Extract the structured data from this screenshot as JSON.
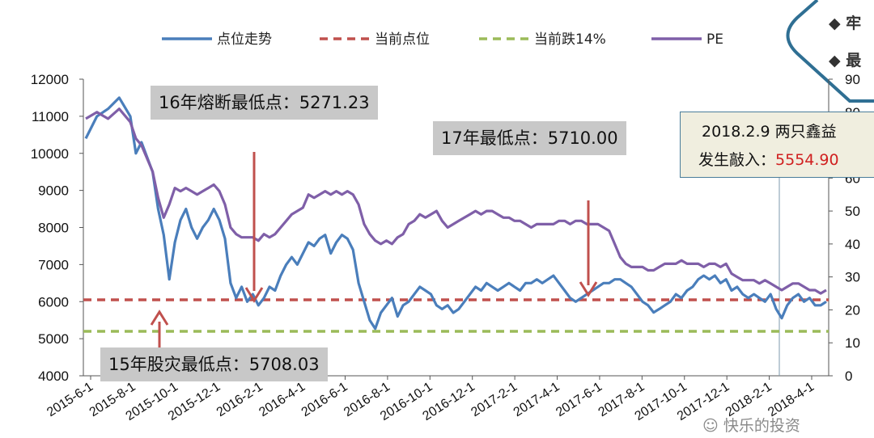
{
  "chart_data": {
    "type": "line",
    "x_ticks": [
      "2015-6-1",
      "2015-8-1",
      "2015-10-1",
      "2015-12-1",
      "2016-2-1",
      "2016-4-1",
      "2016-6-1",
      "2016-8-1",
      "2016-10-1",
      "2016-12-1",
      "2017-2-1",
      "2017-4-1",
      "2017-6-1",
      "2017-8-1",
      "2017-10-1",
      "2017-12-1",
      "2018-2-1",
      "2018-4-1"
    ],
    "y_left": {
      "ticks": [
        4000,
        5000,
        6000,
        7000,
        8000,
        9000,
        10000,
        11000,
        12000
      ],
      "range": [
        4000,
        12000
      ]
    },
    "y_right": {
      "ticks": [
        0,
        10,
        20,
        30,
        40,
        50,
        60,
        70,
        80,
        90
      ],
      "range": [
        0,
        90
      ]
    },
    "series": [
      {
        "name": "点位走势",
        "axis": "left",
        "color": "#4a7ebb",
        "points": [
          [
            0,
            10400
          ],
          [
            2,
            11000
          ],
          [
            4,
            11200
          ],
          [
            6,
            11500
          ],
          [
            8,
            11000
          ],
          [
            9,
            10000
          ],
          [
            10,
            10300
          ],
          [
            12,
            9500
          ],
          [
            13,
            8500
          ],
          [
            14,
            7800
          ],
          [
            15,
            6600
          ],
          [
            16,
            7600
          ],
          [
            17,
            8200
          ],
          [
            18,
            8500
          ],
          [
            19,
            8000
          ],
          [
            20,
            7700
          ],
          [
            21,
            8000
          ],
          [
            22,
            8200
          ],
          [
            23,
            8500
          ],
          [
            24,
            8200
          ],
          [
            25,
            7700
          ],
          [
            26,
            6500
          ],
          [
            27,
            6100
          ],
          [
            28,
            6400
          ],
          [
            29,
            6000
          ],
          [
            30,
            6200
          ],
          [
            31,
            5900
          ],
          [
            32,
            6100
          ],
          [
            33,
            6400
          ],
          [
            34,
            6300
          ],
          [
            35,
            6700
          ],
          [
            36,
            7000
          ],
          [
            37,
            7200
          ],
          [
            38,
            7000
          ],
          [
            39,
            7300
          ],
          [
            40,
            7600
          ],
          [
            41,
            7500
          ],
          [
            42,
            7700
          ],
          [
            43,
            7800
          ],
          [
            44,
            7300
          ],
          [
            45,
            7600
          ],
          [
            46,
            7800
          ],
          [
            47,
            7700
          ],
          [
            48,
            7400
          ],
          [
            49,
            6500
          ],
          [
            50,
            6000
          ],
          [
            51,
            5500
          ],
          [
            52,
            5271
          ],
          [
            53,
            5700
          ],
          [
            54,
            5900
          ],
          [
            55,
            6100
          ],
          [
            56,
            5600
          ],
          [
            57,
            5900
          ],
          [
            58,
            6000
          ],
          [
            59,
            6200
          ],
          [
            60,
            6400
          ],
          [
            61,
            6300
          ],
          [
            62,
            6200
          ],
          [
            63,
            5900
          ],
          [
            64,
            5800
          ],
          [
            65,
            5900
          ],
          [
            66,
            5700
          ],
          [
            67,
            5800
          ],
          [
            68,
            6000
          ],
          [
            69,
            6200
          ],
          [
            70,
            6400
          ],
          [
            71,
            6300
          ],
          [
            72,
            6500
          ],
          [
            73,
            6400
          ],
          [
            74,
            6300
          ],
          [
            75,
            6400
          ],
          [
            76,
            6500
          ],
          [
            77,
            6400
          ],
          [
            78,
            6300
          ],
          [
            79,
            6500
          ],
          [
            80,
            6500
          ],
          [
            81,
            6600
          ],
          [
            82,
            6500
          ],
          [
            83,
            6600
          ],
          [
            84,
            6700
          ],
          [
            85,
            6500
          ],
          [
            86,
            6300
          ],
          [
            87,
            6100
          ],
          [
            88,
            6000
          ],
          [
            89,
            6100
          ],
          [
            90,
            6200
          ],
          [
            91,
            6300
          ],
          [
            92,
            6400
          ],
          [
            93,
            6500
          ],
          [
            94,
            6500
          ],
          [
            95,
            6600
          ],
          [
            96,
            6600
          ],
          [
            97,
            6500
          ],
          [
            98,
            6400
          ],
          [
            99,
            6200
          ],
          [
            100,
            6000
          ],
          [
            101,
            5900
          ],
          [
            102,
            5710
          ],
          [
            103,
            5800
          ],
          [
            104,
            5900
          ],
          [
            105,
            6000
          ],
          [
            106,
            6200
          ],
          [
            107,
            6100
          ],
          [
            108,
            6300
          ],
          [
            109,
            6400
          ],
          [
            110,
            6600
          ],
          [
            111,
            6700
          ],
          [
            112,
            6600
          ],
          [
            113,
            6700
          ],
          [
            114,
            6500
          ],
          [
            115,
            6600
          ],
          [
            116,
            6300
          ],
          [
            117,
            6400
          ],
          [
            118,
            6200
          ],
          [
            119,
            6100
          ],
          [
            120,
            6200
          ],
          [
            121,
            6100
          ],
          [
            122,
            6000
          ],
          [
            123,
            6200
          ],
          [
            124,
            5800
          ],
          [
            125,
            5555
          ],
          [
            126,
            5900
          ],
          [
            127,
            6100
          ],
          [
            128,
            6200
          ],
          [
            129,
            6000
          ],
          [
            130,
            6100
          ],
          [
            131,
            5900
          ],
          [
            132,
            5900
          ],
          [
            133,
            6000
          ]
        ]
      },
      {
        "name": "当前点位",
        "axis": "left",
        "color": "#c0504d",
        "dashed": true,
        "value": 6050
      },
      {
        "name": "当前跌14%",
        "axis": "left",
        "color": "#9bbb59",
        "dashed": true,
        "value": 5200
      },
      {
        "name": "PE",
        "axis": "right",
        "color": "#7f5fa8",
        "points": [
          [
            0,
            78
          ],
          [
            2,
            80
          ],
          [
            4,
            78
          ],
          [
            6,
            81
          ],
          [
            8,
            77
          ],
          [
            9,
            72
          ],
          [
            10,
            70
          ],
          [
            12,
            62
          ],
          [
            13,
            54
          ],
          [
            14,
            48
          ],
          [
            15,
            52
          ],
          [
            16,
            57
          ],
          [
            17,
            56
          ],
          [
            18,
            57
          ],
          [
            19,
            56
          ],
          [
            20,
            55
          ],
          [
            21,
            56
          ],
          [
            22,
            57
          ],
          [
            23,
            58
          ],
          [
            24,
            56
          ],
          [
            25,
            52
          ],
          [
            26,
            45
          ],
          [
            27,
            43
          ],
          [
            28,
            42
          ],
          [
            29,
            42
          ],
          [
            30,
            42
          ],
          [
            31,
            41
          ],
          [
            32,
            43
          ],
          [
            33,
            42
          ],
          [
            34,
            43
          ],
          [
            35,
            45
          ],
          [
            36,
            47
          ],
          [
            37,
            49
          ],
          [
            38,
            50
          ],
          [
            39,
            51
          ],
          [
            40,
            55
          ],
          [
            41,
            54
          ],
          [
            42,
            55
          ],
          [
            43,
            56
          ],
          [
            44,
            55
          ],
          [
            45,
            56
          ],
          [
            46,
            55
          ],
          [
            47,
            56
          ],
          [
            48,
            55
          ],
          [
            49,
            52
          ],
          [
            50,
            46
          ],
          [
            51,
            43
          ],
          [
            52,
            41
          ],
          [
            53,
            40
          ],
          [
            54,
            41
          ],
          [
            55,
            40
          ],
          [
            56,
            42
          ],
          [
            57,
            43
          ],
          [
            58,
            46
          ],
          [
            59,
            47
          ],
          [
            60,
            49
          ],
          [
            61,
            48
          ],
          [
            62,
            49
          ],
          [
            63,
            50
          ],
          [
            64,
            47
          ],
          [
            65,
            45
          ],
          [
            66,
            46
          ],
          [
            67,
            47
          ],
          [
            68,
            48
          ],
          [
            69,
            49
          ],
          [
            70,
            50
          ],
          [
            71,
            49
          ],
          [
            72,
            50
          ],
          [
            73,
            50
          ],
          [
            74,
            49
          ],
          [
            75,
            48
          ],
          [
            76,
            48
          ],
          [
            77,
            47
          ],
          [
            78,
            47
          ],
          [
            79,
            46
          ],
          [
            80,
            45
          ],
          [
            81,
            46
          ],
          [
            82,
            46
          ],
          [
            83,
            46
          ],
          [
            84,
            46
          ],
          [
            85,
            47
          ],
          [
            86,
            47
          ],
          [
            87,
            46
          ],
          [
            88,
            47
          ],
          [
            89,
            47
          ],
          [
            90,
            46
          ],
          [
            91,
            46
          ],
          [
            92,
            46
          ],
          [
            93,
            45
          ],
          [
            94,
            44
          ],
          [
            95,
            40
          ],
          [
            96,
            36
          ],
          [
            97,
            34
          ],
          [
            98,
            33
          ],
          [
            99,
            33
          ],
          [
            100,
            33
          ],
          [
            101,
            32
          ],
          [
            102,
            32
          ],
          [
            103,
            33
          ],
          [
            104,
            34
          ],
          [
            105,
            34
          ],
          [
            106,
            34
          ],
          [
            107,
            35
          ],
          [
            108,
            34
          ],
          [
            109,
            34
          ],
          [
            110,
            34
          ],
          [
            111,
            33
          ],
          [
            112,
            34
          ],
          [
            113,
            34
          ],
          [
            114,
            33
          ],
          [
            115,
            34
          ],
          [
            116,
            31
          ],
          [
            117,
            30
          ],
          [
            118,
            29
          ],
          [
            119,
            29
          ],
          [
            120,
            29
          ],
          [
            121,
            28
          ],
          [
            122,
            29
          ],
          [
            123,
            28
          ],
          [
            124,
            27
          ],
          [
            125,
            26
          ],
          [
            126,
            27
          ],
          [
            127,
            28
          ],
          [
            128,
            28
          ],
          [
            129,
            27
          ],
          [
            130,
            26
          ],
          [
            131,
            26
          ],
          [
            132,
            25
          ],
          [
            133,
            26
          ]
        ]
      }
    ],
    "annotations": [
      {
        "text": "16年熔断最低点：5271.23"
      },
      {
        "text": "17年最低点：5710.00"
      },
      {
        "text": "15年股灾最低点：5708.03"
      }
    ],
    "legend_placement": "top",
    "grid": false
  },
  "infobox": {
    "line1": "2018.2.9  两只鑫益",
    "line2_prefix": "发生敲入：",
    "line2_value": "5554.90"
  },
  "bubble": {
    "item1": "◆  牢",
    "item2": "◆  最"
  },
  "watermark": "快乐的投资"
}
